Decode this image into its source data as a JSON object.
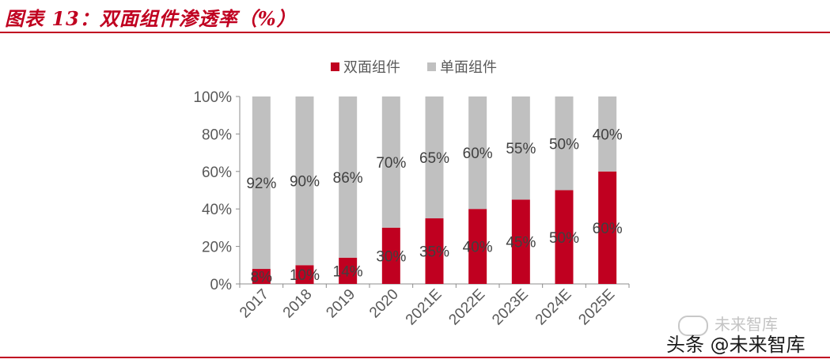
{
  "figure": {
    "title": "图表 13：双面组件渗透率（%）"
  },
  "chart_data": {
    "type": "bar",
    "stacked": true,
    "percent": true,
    "categories": [
      "2017",
      "2018",
      "2019",
      "2020",
      "2021E",
      "2022E",
      "2023E",
      "2024E",
      "2025E"
    ],
    "series": [
      {
        "name": "双面组件",
        "color": "#c00020",
        "values": [
          8,
          10,
          14,
          30,
          35,
          40,
          45,
          50,
          60
        ],
        "labels": [
          "8%",
          "10%",
          "14%",
          "30%",
          "35%",
          "40%",
          "45%",
          "50%",
          "60%"
        ]
      },
      {
        "name": "单面组件",
        "color": "#c0c0c0",
        "values": [
          92,
          90,
          86,
          70,
          65,
          60,
          55,
          50,
          40
        ],
        "labels": [
          "92%",
          "90%",
          "86%",
          "70%",
          "65%",
          "60%",
          "55%",
          "50%",
          "40%"
        ]
      }
    ],
    "ylim": [
      0,
      100
    ],
    "yticks": [
      "0%",
      "20%",
      "40%",
      "60%",
      "80%",
      "100%"
    ],
    "ytick_values": [
      0,
      20,
      40,
      60,
      80,
      100
    ],
    "legend": "top-center",
    "xlabel": "",
    "ylabel": ""
  },
  "watermark": {
    "brand": "未来智库",
    "line2": "头条 @未来智库"
  }
}
